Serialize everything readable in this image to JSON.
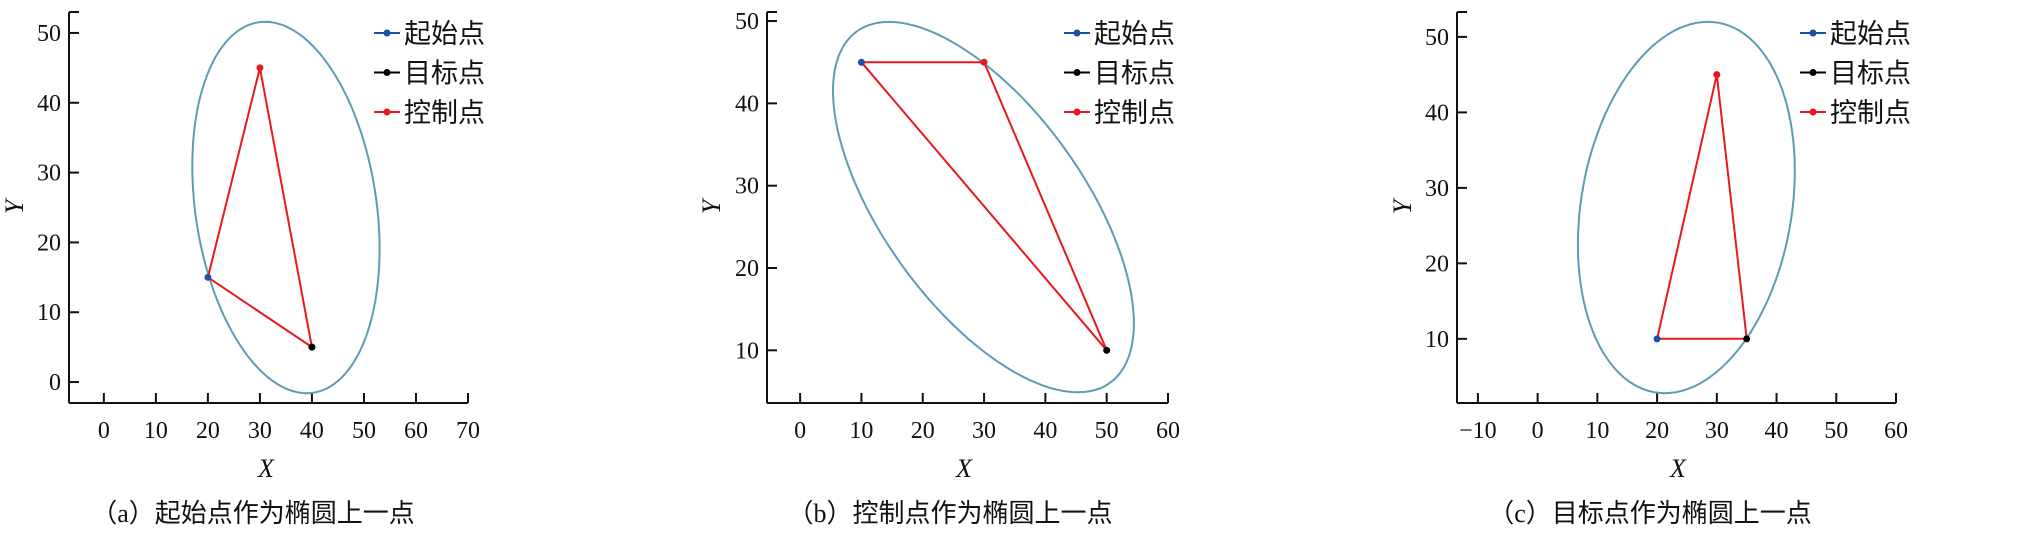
{
  "colors": {
    "start": "#1f4fa8",
    "goal": "#000000",
    "control": "#e8191c",
    "ellipse": "#5e9cb2",
    "axis": "#111111"
  },
  "chart_data": [
    {
      "type": "line",
      "caption": "（a）起始点作为椭圆上一点",
      "xlabel": "X",
      "ylabel": "Y",
      "xlim": [
        -6.7,
        70
      ],
      "ylim": [
        -3,
        53
      ],
      "xticks": [
        0,
        10,
        20,
        30,
        40,
        50,
        60,
        70
      ],
      "yticks": [
        0,
        10,
        20,
        30,
        40,
        50
      ],
      "legend": [
        "起始点",
        "目标点",
        "控制点"
      ],
      "legend_position": "top-right",
      "points": {
        "start": [
          20,
          15
        ],
        "goal": [
          40,
          5
        ],
        "control": [
          30,
          45
        ]
      },
      "ellipse": {
        "center": [
          35,
          25
        ],
        "a_vec": [
          -4,
          26.6
        ],
        "b_vec": [
          17.55,
          0
        ]
      }
    },
    {
      "type": "line",
      "caption": "（b）控制点作为椭圆上一点",
      "xlabel": "X",
      "ylabel": "Y",
      "xlim": [
        -5.4,
        60
      ],
      "ylim": [
        3.6,
        51.1
      ],
      "xticks": [
        0,
        10,
        20,
        30,
        40,
        50,
        60
      ],
      "yticks": [
        10,
        20,
        30,
        40,
        50
      ],
      "legend": [
        "起始点",
        "目标点",
        "控制点"
      ],
      "legend_position": "top-right",
      "points": {
        "start": [
          10,
          45
        ],
        "goal": [
          50,
          10
        ],
        "control": [
          30,
          45
        ]
      },
      "ellipse": {
        "center": [
          29.9,
          27.4
        ],
        "a_vec": [
          -15.4,
          22.5
        ],
        "b_vec": [
          19.1,
          0
        ]
      }
    },
    {
      "type": "line",
      "caption": "（c）目标点作为椭圆上一点",
      "xlabel": "X",
      "ylabel": "Y",
      "xlim": [
        -13.5,
        60
      ],
      "ylim": [
        1.5,
        53.3
      ],
      "xticks": [
        -10,
        0,
        10,
        20,
        30,
        40,
        50,
        60
      ],
      "yticks": [
        10,
        20,
        30,
        40,
        50
      ],
      "legend": [
        "起始点",
        "目标点",
        "控制点"
      ],
      "legend_position": "top-right",
      "points": {
        "start": [
          20,
          10
        ],
        "goal": [
          35,
          10
        ],
        "control": [
          30,
          45
        ]
      },
      "ellipse": {
        "center": [
          24.9,
          27.4
        ],
        "a_vec": [
          3.6,
          24.6
        ],
        "b_vec": [
          17.8,
          0
        ]
      }
    }
  ]
}
